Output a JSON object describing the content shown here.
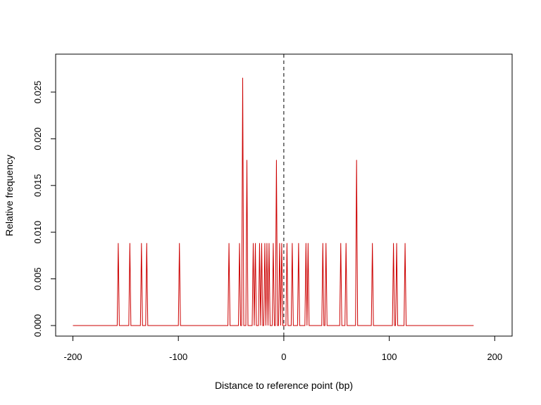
{
  "chart_data": {
    "type": "line",
    "title": "",
    "xlabel": "Distance to reference point (bp)",
    "ylabel": "Relative frequency",
    "xlim": [
      -200,
      180
    ],
    "ylim": [
      0,
      0.0265
    ],
    "x_ticks": [
      -200,
      -100,
      0,
      100,
      200
    ],
    "y_ticks": [
      0.0,
      0.005,
      0.01,
      0.015,
      0.02,
      0.025
    ],
    "x_tick_labels": [
      "-200",
      "-100",
      "0",
      "100",
      "200"
    ],
    "y_tick_labels": [
      "0.000",
      "0.005",
      "0.010",
      "0.015",
      "0.020",
      "0.025"
    ],
    "grid": false,
    "reference_line": {
      "x": 0,
      "style": "dashed"
    },
    "series_color": "#cc0000",
    "baseline": 0,
    "peaks": [
      {
        "x": -157,
        "y": 0.0088
      },
      {
        "x": -146,
        "y": 0.0088
      },
      {
        "x": -135,
        "y": 0.0088
      },
      {
        "x": -130,
        "y": 0.0088
      },
      {
        "x": -99,
        "y": 0.0088
      },
      {
        "x": -52,
        "y": 0.0088
      },
      {
        "x": -42,
        "y": 0.0088
      },
      {
        "x": -39,
        "y": 0.0265
      },
      {
        "x": -35,
        "y": 0.0177
      },
      {
        "x": -29,
        "y": 0.0088
      },
      {
        "x": -27,
        "y": 0.0088
      },
      {
        "x": -23,
        "y": 0.0088
      },
      {
        "x": -21,
        "y": 0.0088
      },
      {
        "x": -18,
        "y": 0.0088
      },
      {
        "x": -16,
        "y": 0.0088
      },
      {
        "x": -14,
        "y": 0.0088
      },
      {
        "x": -10,
        "y": 0.0088
      },
      {
        "x": -7,
        "y": 0.0177
      },
      {
        "x": -4,
        "y": 0.0088
      },
      {
        "x": -2,
        "y": 0.0088
      },
      {
        "x": 3,
        "y": 0.0088
      },
      {
        "x": 8,
        "y": 0.0088
      },
      {
        "x": 14,
        "y": 0.0088
      },
      {
        "x": 21,
        "y": 0.0088
      },
      {
        "x": 23,
        "y": 0.0088
      },
      {
        "x": 37,
        "y": 0.0088
      },
      {
        "x": 40,
        "y": 0.0088
      },
      {
        "x": 54,
        "y": 0.0088
      },
      {
        "x": 59,
        "y": 0.0088
      },
      {
        "x": 69,
        "y": 0.0177
      },
      {
        "x": 84,
        "y": 0.0088
      },
      {
        "x": 104,
        "y": 0.0088
      },
      {
        "x": 107,
        "y": 0.0088
      },
      {
        "x": 115,
        "y": 0.0088
      }
    ]
  }
}
